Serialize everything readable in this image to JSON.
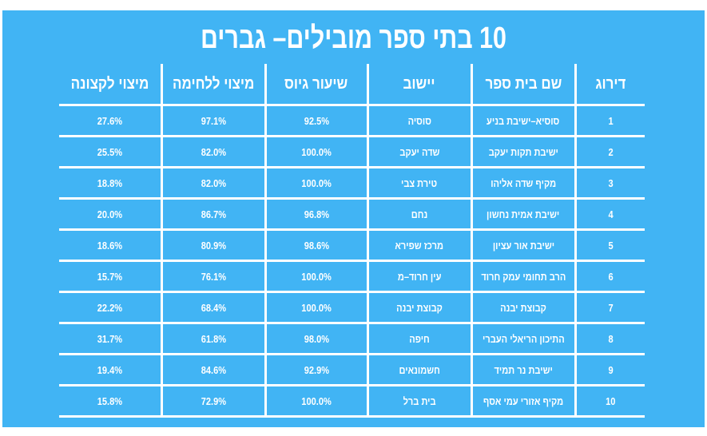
{
  "title": "10 בתי ספר מובילים– גברים",
  "headers": [
    "דירוג",
    "שם בית ספר",
    "יישוב",
    "שיעור גיוס",
    "מיצוי ללחימה",
    "מיצוי לקצונה"
  ],
  "rows": [
    [
      "1",
      "סוסיא–ישיבת בניע",
      "סוסיה",
      "92.5%",
      "97.1%",
      "27.6%"
    ],
    [
      "2",
      "ישיבת תקות יעקב",
      "שדה יעקב",
      "100.0%",
      "82.0%",
      "25.5%"
    ],
    [
      "3",
      "מקיף שדה אליהו",
      "טירת צבי",
      "100.0%",
      "82.0%",
      "18.8%"
    ],
    [
      "4",
      "ישיבת אמית נחשון",
      "נחם",
      "96.8%",
      "86.7%",
      "20.0%"
    ],
    [
      "5",
      "ישיבת אור עציון",
      "מרכז שפירא",
      "98.6%",
      "80.9%",
      "18.6%"
    ],
    [
      "6",
      "הרב תחומי עמק חרוד",
      "עין חרוד–מ",
      "100.0%",
      "76.1%",
      "15.7%"
    ],
    [
      "7",
      "קבוצת יבנה",
      "קבוצת יבנה",
      "100.0%",
      "68.4%",
      "22.2%"
    ],
    [
      "8",
      "התיכון הריאלי העברי",
      "חיפה",
      "98.0%",
      "61.8%",
      "31.7%"
    ],
    [
      "9",
      "ישיבת נר תמיד",
      "חשמונאים",
      "92.9%",
      "84.6%",
      "19.4%"
    ],
    [
      "10",
      "מקיף אזורי עמי אסף",
      "בית ברל",
      "100.0%",
      "72.9%",
      "15.8%"
    ]
  ]
}
